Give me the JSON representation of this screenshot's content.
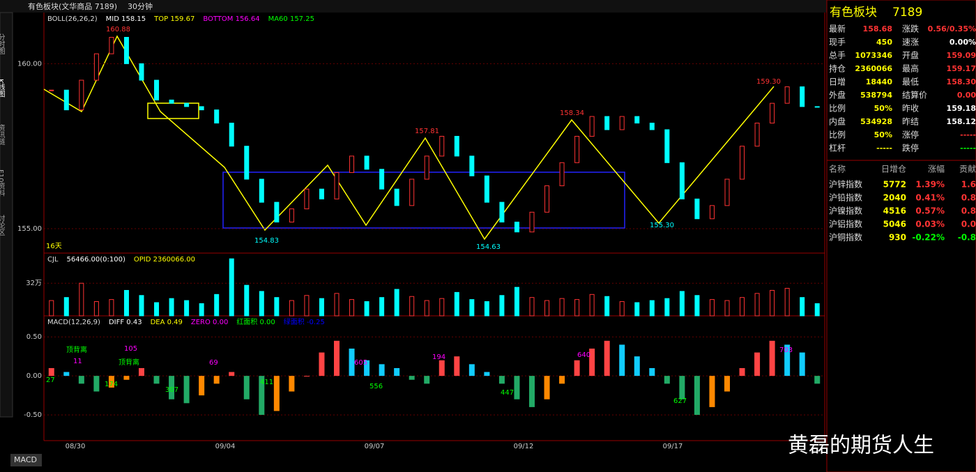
{
  "header": {
    "window_title": "有色板块(文华商品 7189)",
    "period": "30分钟"
  },
  "side_tabs": [
    "分时图",
    "K线图",
    "资讯链",
    "F10资料",
    "讨论区"
  ],
  "bottom_tab": "MACD",
  "watermark": "黄磊的期货人生",
  "kline": {
    "labels": [
      "BOLL(26,26,2)",
      "MID 158.15",
      "TOP 159.67",
      "BOTTOM 156.64",
      "MA60 157.25"
    ],
    "ylim": [
      154.26,
      161.55
    ],
    "yticks": [
      {
        "value": 160,
        "label": "160.00"
      },
      {
        "value": 155,
        "label": "155.00"
      }
    ],
    "close": [
      159.2,
      158.6,
      159.5,
      160.3,
      160.8,
      160.0,
      159.5,
      158.9,
      158.8,
      158.7,
      158.6,
      158.2,
      157.5,
      156.5,
      155.8,
      155.2,
      155.6,
      156.2,
      155.9,
      156.7,
      157.2,
      156.8,
      156.2,
      155.7,
      156.5,
      157.2,
      157.8,
      157.2,
      156.6,
      155.8,
      155.2,
      154.9,
      155.5,
      156.3,
      157.0,
      157.8,
      158.4,
      158.0,
      158.4,
      158.2,
      158.0,
      157.0,
      155.9,
      155.3,
      155.7,
      156.5,
      157.5,
      158.2,
      158.8,
      159.3,
      158.7,
      158.68
    ],
    "annotations": [
      "160.88",
      "157.81",
      "158.34",
      "159.30",
      "154.83",
      "154.63",
      "155.30",
      "16天"
    ],
    "dates": [
      "08/30",
      "09/04",
      "09/07",
      "09/12",
      "09/17"
    ]
  },
  "volume": {
    "labels": [
      "CJL",
      "56466.00(0:100)",
      "OPID 2360066.00"
    ],
    "ylim": [
      0,
      616000
    ],
    "yticks": [
      {
        "value": 320000,
        "label": "32万"
      }
    ],
    "values": [
      150000,
      180000,
      320000,
      140000,
      160000,
      250000,
      200000,
      130000,
      170000,
      150000,
      120000,
      210000,
      560000,
      300000,
      240000,
      180000,
      150000,
      200000,
      170000,
      220000,
      160000,
      140000,
      180000,
      260000,
      190000,
      150000,
      170000,
      230000,
      160000,
      140000,
      200000,
      280000,
      180000,
      150000,
      170000,
      160000,
      210000,
      190000,
      140000,
      130000,
      150000,
      170000,
      240000,
      200000,
      160000,
      150000,
      180000,
      220000,
      250000,
      270000,
      180000,
      120000
    ]
  },
  "macd": {
    "labels": [
      "MACD(12,26,9)",
      "DIFF 0.43",
      "DEA 0.49",
      "ZERO 0.00",
      "红面积 0.00",
      "绿面积 -0.25"
    ],
    "ylim": [
      -0.83,
      0.77
    ],
    "yticks": [
      {
        "value": 0.5,
        "label": "0.50"
      },
      {
        "value": 0,
        "label": "0.00"
      },
      {
        "value": -0.5,
        "label": "-0.50"
      }
    ],
    "values": [
      0.1,
      0.05,
      -0.1,
      -0.2,
      -0.15,
      -0.05,
      0.1,
      -0.1,
      -0.3,
      -0.35,
      -0.25,
      -0.1,
      0.05,
      -0.3,
      -0.5,
      -0.45,
      -0.2,
      0.0,
      0.3,
      0.45,
      0.35,
      0.2,
      0.15,
      0.1,
      -0.05,
      -0.1,
      0.2,
      0.25,
      0.15,
      0.05,
      -0.1,
      -0.3,
      -0.4,
      -0.3,
      -0.1,
      0.2,
      0.35,
      0.45,
      0.4,
      0.25,
      0.1,
      -0.1,
      -0.3,
      -0.5,
      -0.4,
      -0.2,
      0.1,
      0.3,
      0.45,
      0.4,
      0.3,
      -0.1
    ],
    "annotations": [
      "顶背离",
      "顶背离",
      "105",
      "27",
      "11",
      "174",
      "307",
      "69",
      "411",
      "605",
      "556",
      "194",
      "447",
      "640",
      "627",
      "703"
    ]
  },
  "quote": {
    "title": "有色板块",
    "code": "7189",
    "rows": [
      [
        "最新",
        "158.68",
        "涨跌",
        "0.56/0.35%"
      ],
      [
        "现手",
        "450",
        "速涨",
        "0.00%"
      ],
      [
        "总手",
        "1073346",
        "开盘",
        "159.09"
      ],
      [
        "持仓",
        "2360066",
        "最高",
        "159.17"
      ],
      [
        "日增",
        "18440",
        "最低",
        "158.30"
      ],
      [
        "外盘",
        "538794",
        "结算价",
        "0.00"
      ],
      [
        "比例",
        "50%",
        "昨收",
        "159.18"
      ],
      [
        "内盘",
        "534928",
        "昨结",
        "158.12"
      ],
      [
        "比例",
        "50%",
        "涨停",
        "-----"
      ],
      [
        "杠杆",
        "-----",
        "跌停",
        "-----"
      ]
    ]
  },
  "index_table": {
    "header": [
      "名称",
      "日增仓",
      "涨幅",
      "贡献"
    ],
    "rows": [
      [
        "沪锌指数",
        "5772",
        "1.39%",
        "1.6"
      ],
      [
        "沪铅指数",
        "2040",
        "0.41%",
        "0.8"
      ],
      [
        "沪镍指数",
        "4516",
        "0.57%",
        "0.8"
      ],
      [
        "沪铝指数",
        "5046",
        "0.03%",
        "0.0"
      ],
      [
        "沪铜指数",
        "930",
        "-0.22%",
        "-0.8"
      ]
    ]
  }
}
